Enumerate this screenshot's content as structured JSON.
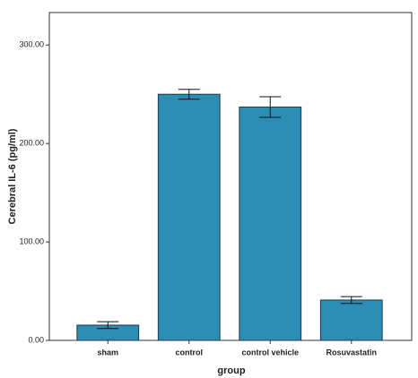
{
  "chart_data": {
    "type": "bar",
    "x_label": "group",
    "y_label": "Cerebral IL-6 (pg/ml)",
    "categories": [
      "sham",
      "control",
      "control vehicle",
      "Rosuvastatin"
    ],
    "values": [
      15.5,
      250,
      237,
      41
    ],
    "errors": [
      3.5,
      5,
      10.5,
      3.5
    ],
    "color": "#2b8db3",
    "ylim": [
      0,
      333
    ],
    "yticks": [
      {
        "value": 0,
        "label": "0.00"
      },
      {
        "value": 100,
        "label": "100.00"
      },
      {
        "value": 200,
        "label": "200.00"
      },
      {
        "value": 300,
        "label": "300.00"
      }
    ],
    "grid": false
  }
}
